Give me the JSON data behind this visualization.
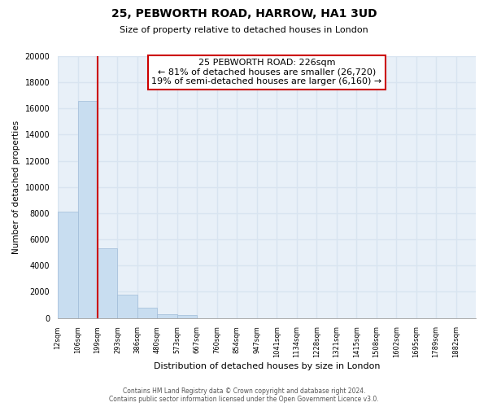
{
  "title": "25, PEBWORTH ROAD, HARROW, HA1 3UD",
  "subtitle": "Size of property relative to detached houses in London",
  "xlabel": "Distribution of detached houses by size in London",
  "ylabel": "Number of detached properties",
  "bin_labels": [
    "12sqm",
    "106sqm",
    "199sqm",
    "293sqm",
    "386sqm",
    "480sqm",
    "573sqm",
    "667sqm",
    "760sqm",
    "854sqm",
    "947sqm",
    "1041sqm",
    "1134sqm",
    "1228sqm",
    "1321sqm",
    "1415sqm",
    "1508sqm",
    "1602sqm",
    "1695sqm",
    "1789sqm",
    "1882sqm"
  ],
  "bar_heights": [
    8100,
    16600,
    5300,
    1800,
    800,
    300,
    200,
    0,
    0,
    0,
    0,
    0,
    0,
    0,
    0,
    0,
    0,
    0,
    0,
    0
  ],
  "bar_color": "#c8ddf0",
  "bar_edge_color": "#a0bcd8",
  "property_line_x": 2.0,
  "property_line_color": "#cc0000",
  "annotation_title": "25 PEBWORTH ROAD: 226sqm",
  "annotation_line1": "← 81% of detached houses are smaller (26,720)",
  "annotation_line2": "19% of semi-detached houses are larger (6,160) →",
  "annotation_box_color": "white",
  "annotation_box_edge": "#cc0000",
  "ylim": [
    0,
    20000
  ],
  "yticks": [
    0,
    2000,
    4000,
    6000,
    8000,
    10000,
    12000,
    14000,
    16000,
    18000,
    20000
  ],
  "grid_color": "#d8e4f0",
  "footer_line1": "Contains HM Land Registry data © Crown copyright and database right 2024.",
  "footer_line2": "Contains public sector information licensed under the Open Government Licence v3.0.",
  "bg_color": "#ffffff",
  "plot_bg_color": "#e8f0f8"
}
